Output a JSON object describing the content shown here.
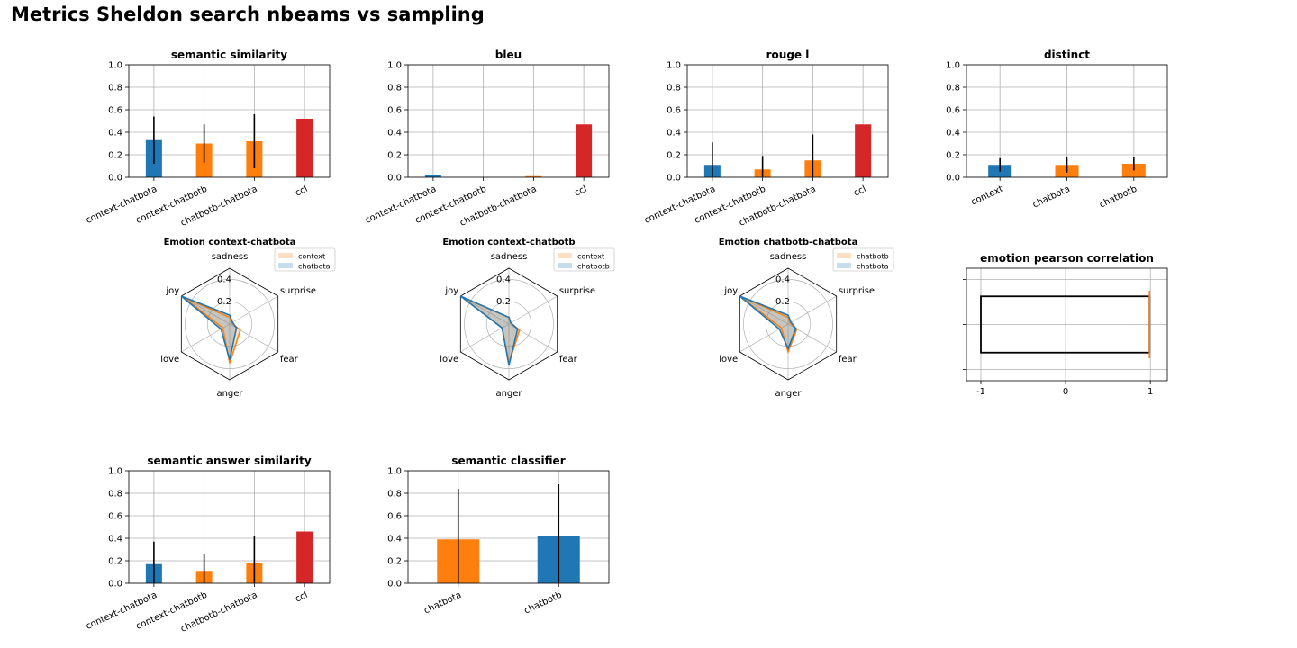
{
  "page": {
    "title": "Metrics Sheldon search nbeams vs sampling"
  },
  "colors": {
    "blue": "#1f77b4",
    "orange": "#ff7f0e",
    "red": "#d62728",
    "grid": "#b0b0b0"
  },
  "chart_data": [
    {
      "id": "semantic_similarity",
      "type": "bar",
      "title": "semantic similarity",
      "categories": [
        "context-chatbota",
        "context-chatbotb",
        "chatbotb-chatbota",
        "ccl"
      ],
      "values": [
        0.33,
        0.3,
        0.32,
        0.52
      ],
      "errors": [
        0.21,
        0.17,
        0.24,
        0
      ],
      "bar_colors": [
        "blue",
        "orange",
        "orange",
        "red"
      ],
      "ylim": [
        0,
        1
      ],
      "yticks": [
        "0.0",
        "0.2",
        "0.4",
        "0.6",
        "0.8",
        "1.0"
      ],
      "grid": true
    },
    {
      "id": "bleu",
      "type": "bar",
      "title": "bleu",
      "categories": [
        "context-chatbota",
        "context-chatbotb",
        "chatbotb-chatbota",
        "ccl"
      ],
      "values": [
        0.02,
        0.0,
        0.01,
        0.47
      ],
      "errors": [
        0,
        0,
        0,
        0
      ],
      "bar_colors": [
        "blue",
        "orange",
        "orange",
        "red"
      ],
      "ylim": [
        0,
        1
      ],
      "yticks": [
        "0.0",
        "0.2",
        "0.4",
        "0.6",
        "0.8",
        "1.0"
      ],
      "grid": true
    },
    {
      "id": "rouge_l",
      "type": "bar",
      "title": "rouge l",
      "categories": [
        "context-chatbota",
        "context-chatbotb",
        "chatbotb-chatbota",
        "ccl"
      ],
      "values": [
        0.11,
        0.07,
        0.15,
        0.47
      ],
      "errors": [
        0.2,
        0.12,
        0.23,
        0
      ],
      "bar_colors": [
        "blue",
        "orange",
        "orange",
        "red"
      ],
      "ylim": [
        0,
        1
      ],
      "yticks": [
        "0.0",
        "0.2",
        "0.4",
        "0.6",
        "0.8",
        "1.0"
      ],
      "grid": true
    },
    {
      "id": "distinct",
      "type": "bar",
      "title": "distinct",
      "categories": [
        "context",
        "chatbota",
        "chatbotb"
      ],
      "values": [
        0.11,
        0.11,
        0.12
      ],
      "errors": [
        0.06,
        0.07,
        0.06
      ],
      "bar_colors": [
        "blue",
        "orange",
        "orange"
      ],
      "ylim": [
        0,
        1
      ],
      "yticks": [
        "0.0",
        "0.2",
        "0.4",
        "0.6",
        "0.8",
        "1.0"
      ],
      "grid": true
    },
    {
      "id": "emotion_context_chatbota",
      "type": "radar",
      "title": "Emotion context-chatbota",
      "axes": [
        "sadness",
        "surprise",
        "fear",
        "anger",
        "love",
        "joy"
      ],
      "rticks": [
        "0.2",
        "0.4"
      ],
      "rmax": 0.5,
      "series": [
        {
          "name": "context",
          "color": "orange",
          "values": [
            0.06,
            0.02,
            0.11,
            0.35,
            0.07,
            0.48
          ]
        },
        {
          "name": "chatbota",
          "color": "blue",
          "values": [
            0.08,
            0.03,
            0.07,
            0.32,
            0.09,
            0.5
          ]
        }
      ],
      "legend_position": "top-right"
    },
    {
      "id": "emotion_context_chatbotb",
      "type": "radar",
      "title": "Emotion context-chatbotb",
      "axes": [
        "sadness",
        "surprise",
        "fear",
        "anger",
        "love",
        "joy"
      ],
      "rticks": [
        "0.2",
        "0.4"
      ],
      "rmax": 0.5,
      "series": [
        {
          "name": "context",
          "color": "orange",
          "values": [
            0.06,
            0.02,
            0.11,
            0.35,
            0.07,
            0.48
          ]
        },
        {
          "name": "chatbotb",
          "color": "blue",
          "values": [
            0.06,
            0.02,
            0.09,
            0.37,
            0.07,
            0.5
          ]
        }
      ],
      "legend_position": "top-right"
    },
    {
      "id": "emotion_chatbotb_chatbota",
      "type": "radar",
      "title": "Emotion chatbotb-chatbota",
      "axes": [
        "sadness",
        "surprise",
        "fear",
        "anger",
        "love",
        "joy"
      ],
      "rticks": [
        "0.2",
        "0.4"
      ],
      "rmax": 0.5,
      "series": [
        {
          "name": "chatbotb",
          "color": "orange",
          "values": [
            0.06,
            0.02,
            0.09,
            0.25,
            0.07,
            0.5
          ]
        },
        {
          "name": "chatbota",
          "color": "blue",
          "values": [
            0.08,
            0.03,
            0.08,
            0.22,
            0.09,
            0.5
          ]
        }
      ],
      "legend_position": "top-right"
    },
    {
      "id": "emotion_pearson_correlation",
      "type": "box",
      "title": "emotion pearson correlation",
      "xlim": [
        -1.17,
        1.2
      ],
      "xticks": [
        -1,
        0,
        1
      ],
      "xtick_labels": [
        "-1",
        "0",
        "1"
      ],
      "ylim": [
        0,
        1
      ],
      "box": {
        "x_start": -1,
        "x_end": 0.99,
        "y_bottom": 0.25,
        "y_top": 0.75
      },
      "median_x": 1.0,
      "median_range": [
        0.2,
        0.8
      ],
      "grid": true
    },
    {
      "id": "semantic_answer_similarity",
      "type": "bar",
      "title": "semantic answer similarity",
      "categories": [
        "context-chatbota",
        "context-chatbotb",
        "chatbotb-chatbota",
        "ccl"
      ],
      "values": [
        0.17,
        0.11,
        0.18,
        0.46
      ],
      "errors": [
        0.2,
        0.15,
        0.24,
        0
      ],
      "bar_colors": [
        "blue",
        "orange",
        "orange",
        "red"
      ],
      "ylim": [
        0,
        1
      ],
      "yticks": [
        "0.0",
        "0.2",
        "0.4",
        "0.6",
        "0.8",
        "1.0"
      ],
      "grid": true
    },
    {
      "id": "semantic_classifier",
      "type": "bar",
      "title": "semantic classifier",
      "categories": [
        "chatbota",
        "chatbotb"
      ],
      "values": [
        0.39,
        0.42
      ],
      "errors": [
        0.45,
        0.46
      ],
      "bar_colors": [
        "orange",
        "blue"
      ],
      "ylim": [
        0,
        1
      ],
      "yticks": [
        "0.0",
        "0.2",
        "0.4",
        "0.6",
        "0.8",
        "1.0"
      ],
      "grid": true
    }
  ]
}
